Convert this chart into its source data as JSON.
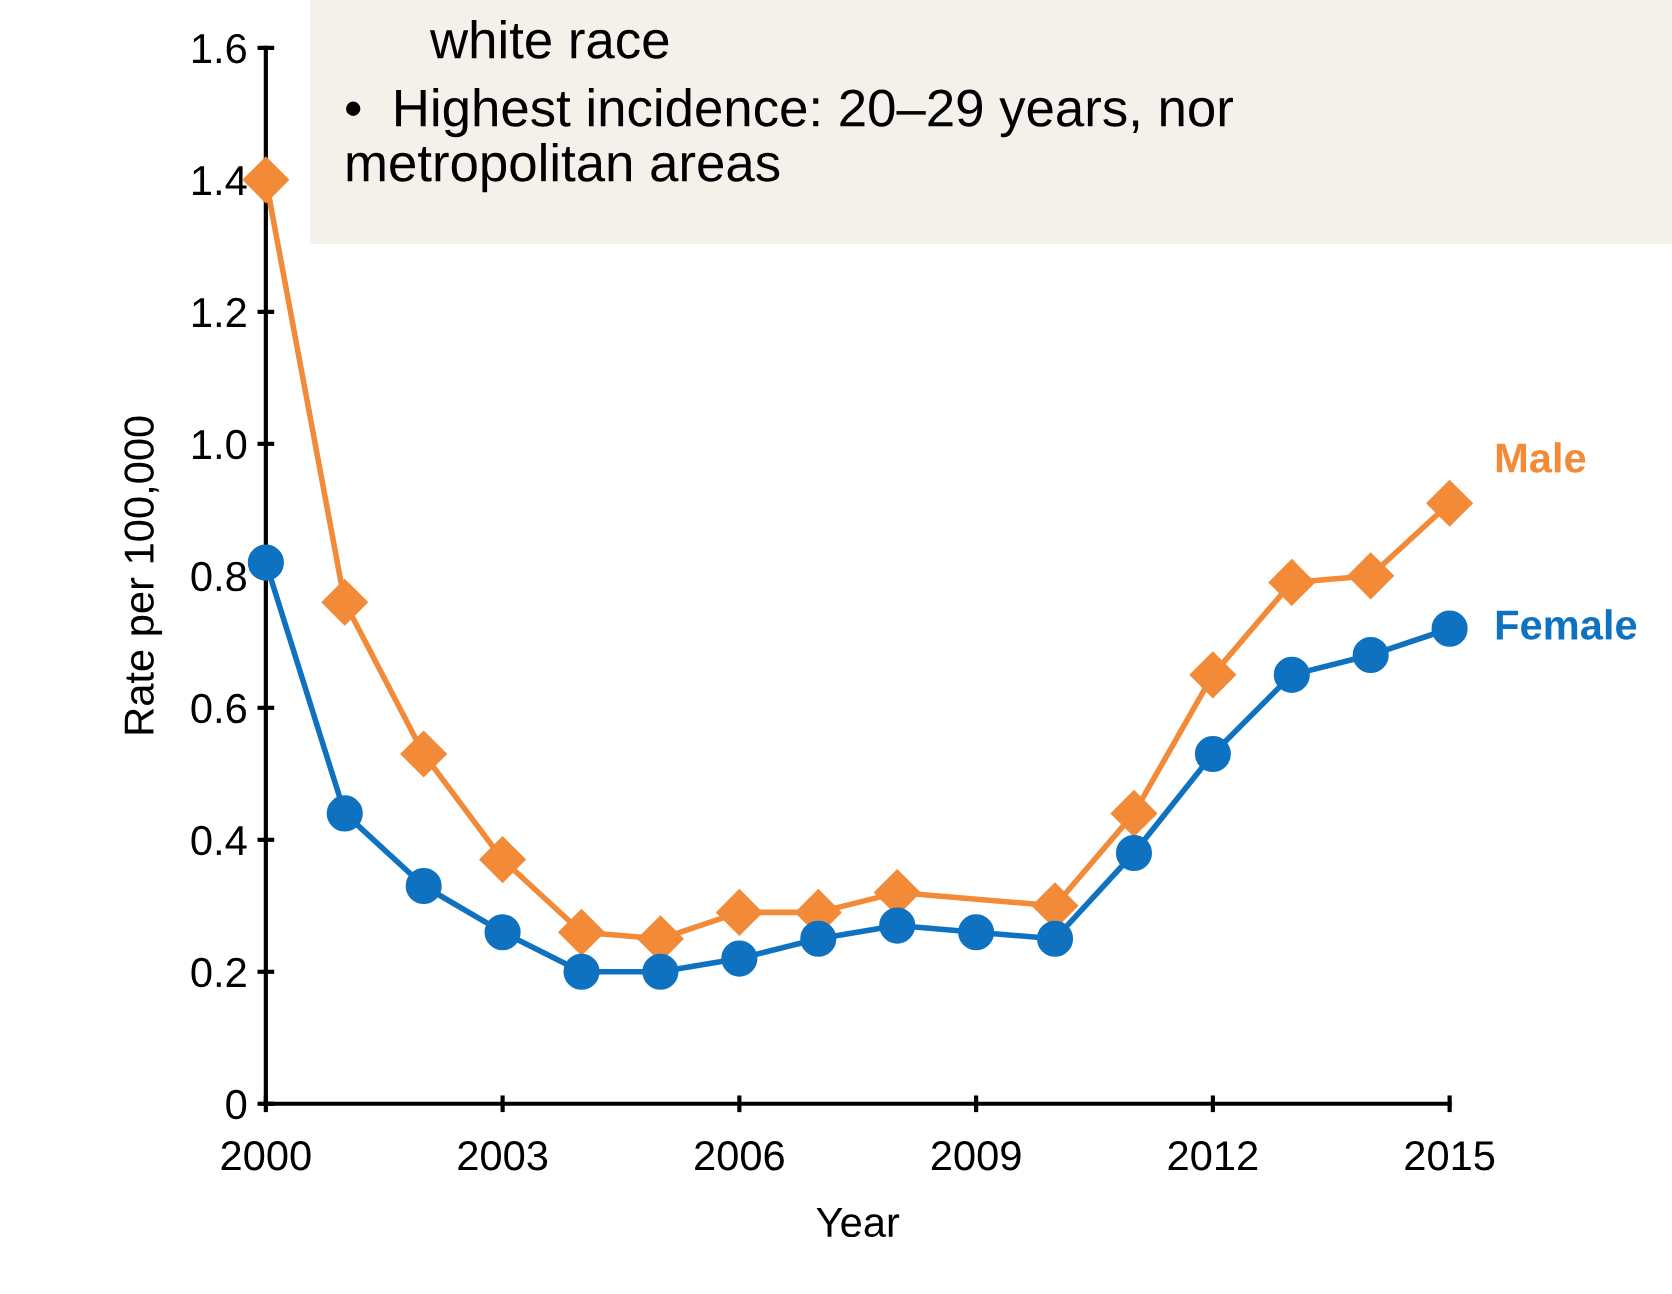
{
  "chart_data": {
    "type": "line",
    "xlabel": "Year",
    "ylabel": "Rate per 100,000",
    "xlim": [
      2000,
      2015
    ],
    "xticks": [
      2000,
      2003,
      2006,
      2009,
      2012,
      2015
    ],
    "ylim": [
      0,
      1.6
    ],
    "yticks": [
      0,
      0.2,
      0.4,
      0.6,
      0.8,
      {
        "value": 1,
        "label": "1.0"
      },
      1.2,
      1.4,
      1.6
    ],
    "grid": false,
    "legend": false,
    "series": [
      {
        "name": "Male",
        "color": "#f28a37",
        "marker": "diamond",
        "x": [
          2000,
          2001,
          2002,
          2003,
          2004,
          2005,
          2006,
          2007,
          2008,
          2010,
          2011,
          2012,
          2013,
          2014,
          2015
        ],
        "values": [
          1.4,
          0.76,
          0.53,
          0.37,
          0.26,
          0.25,
          0.29,
          0.29,
          0.32,
          0.3,
          0.44,
          0.65,
          0.79,
          0.8,
          0.91
        ]
      },
      {
        "name": "Female",
        "color": "#0f72c1",
        "marker": "circle",
        "x": [
          2000,
          2001,
          2002,
          2003,
          2004,
          2005,
          2006,
          2007,
          2008,
          2009,
          2010,
          2011,
          2012,
          2013,
          2014,
          2015
        ],
        "values": [
          0.82,
          0.44,
          0.33,
          0.26,
          0.2,
          0.2,
          0.22,
          0.25,
          0.27,
          0.26,
          0.25,
          0.38,
          0.53,
          0.65,
          0.68,
          0.72
        ]
      }
    ],
    "annotations": [
      "white race",
      "•  Highest incidence: 20–29 years, nor\nmetropolitan areas"
    ]
  }
}
